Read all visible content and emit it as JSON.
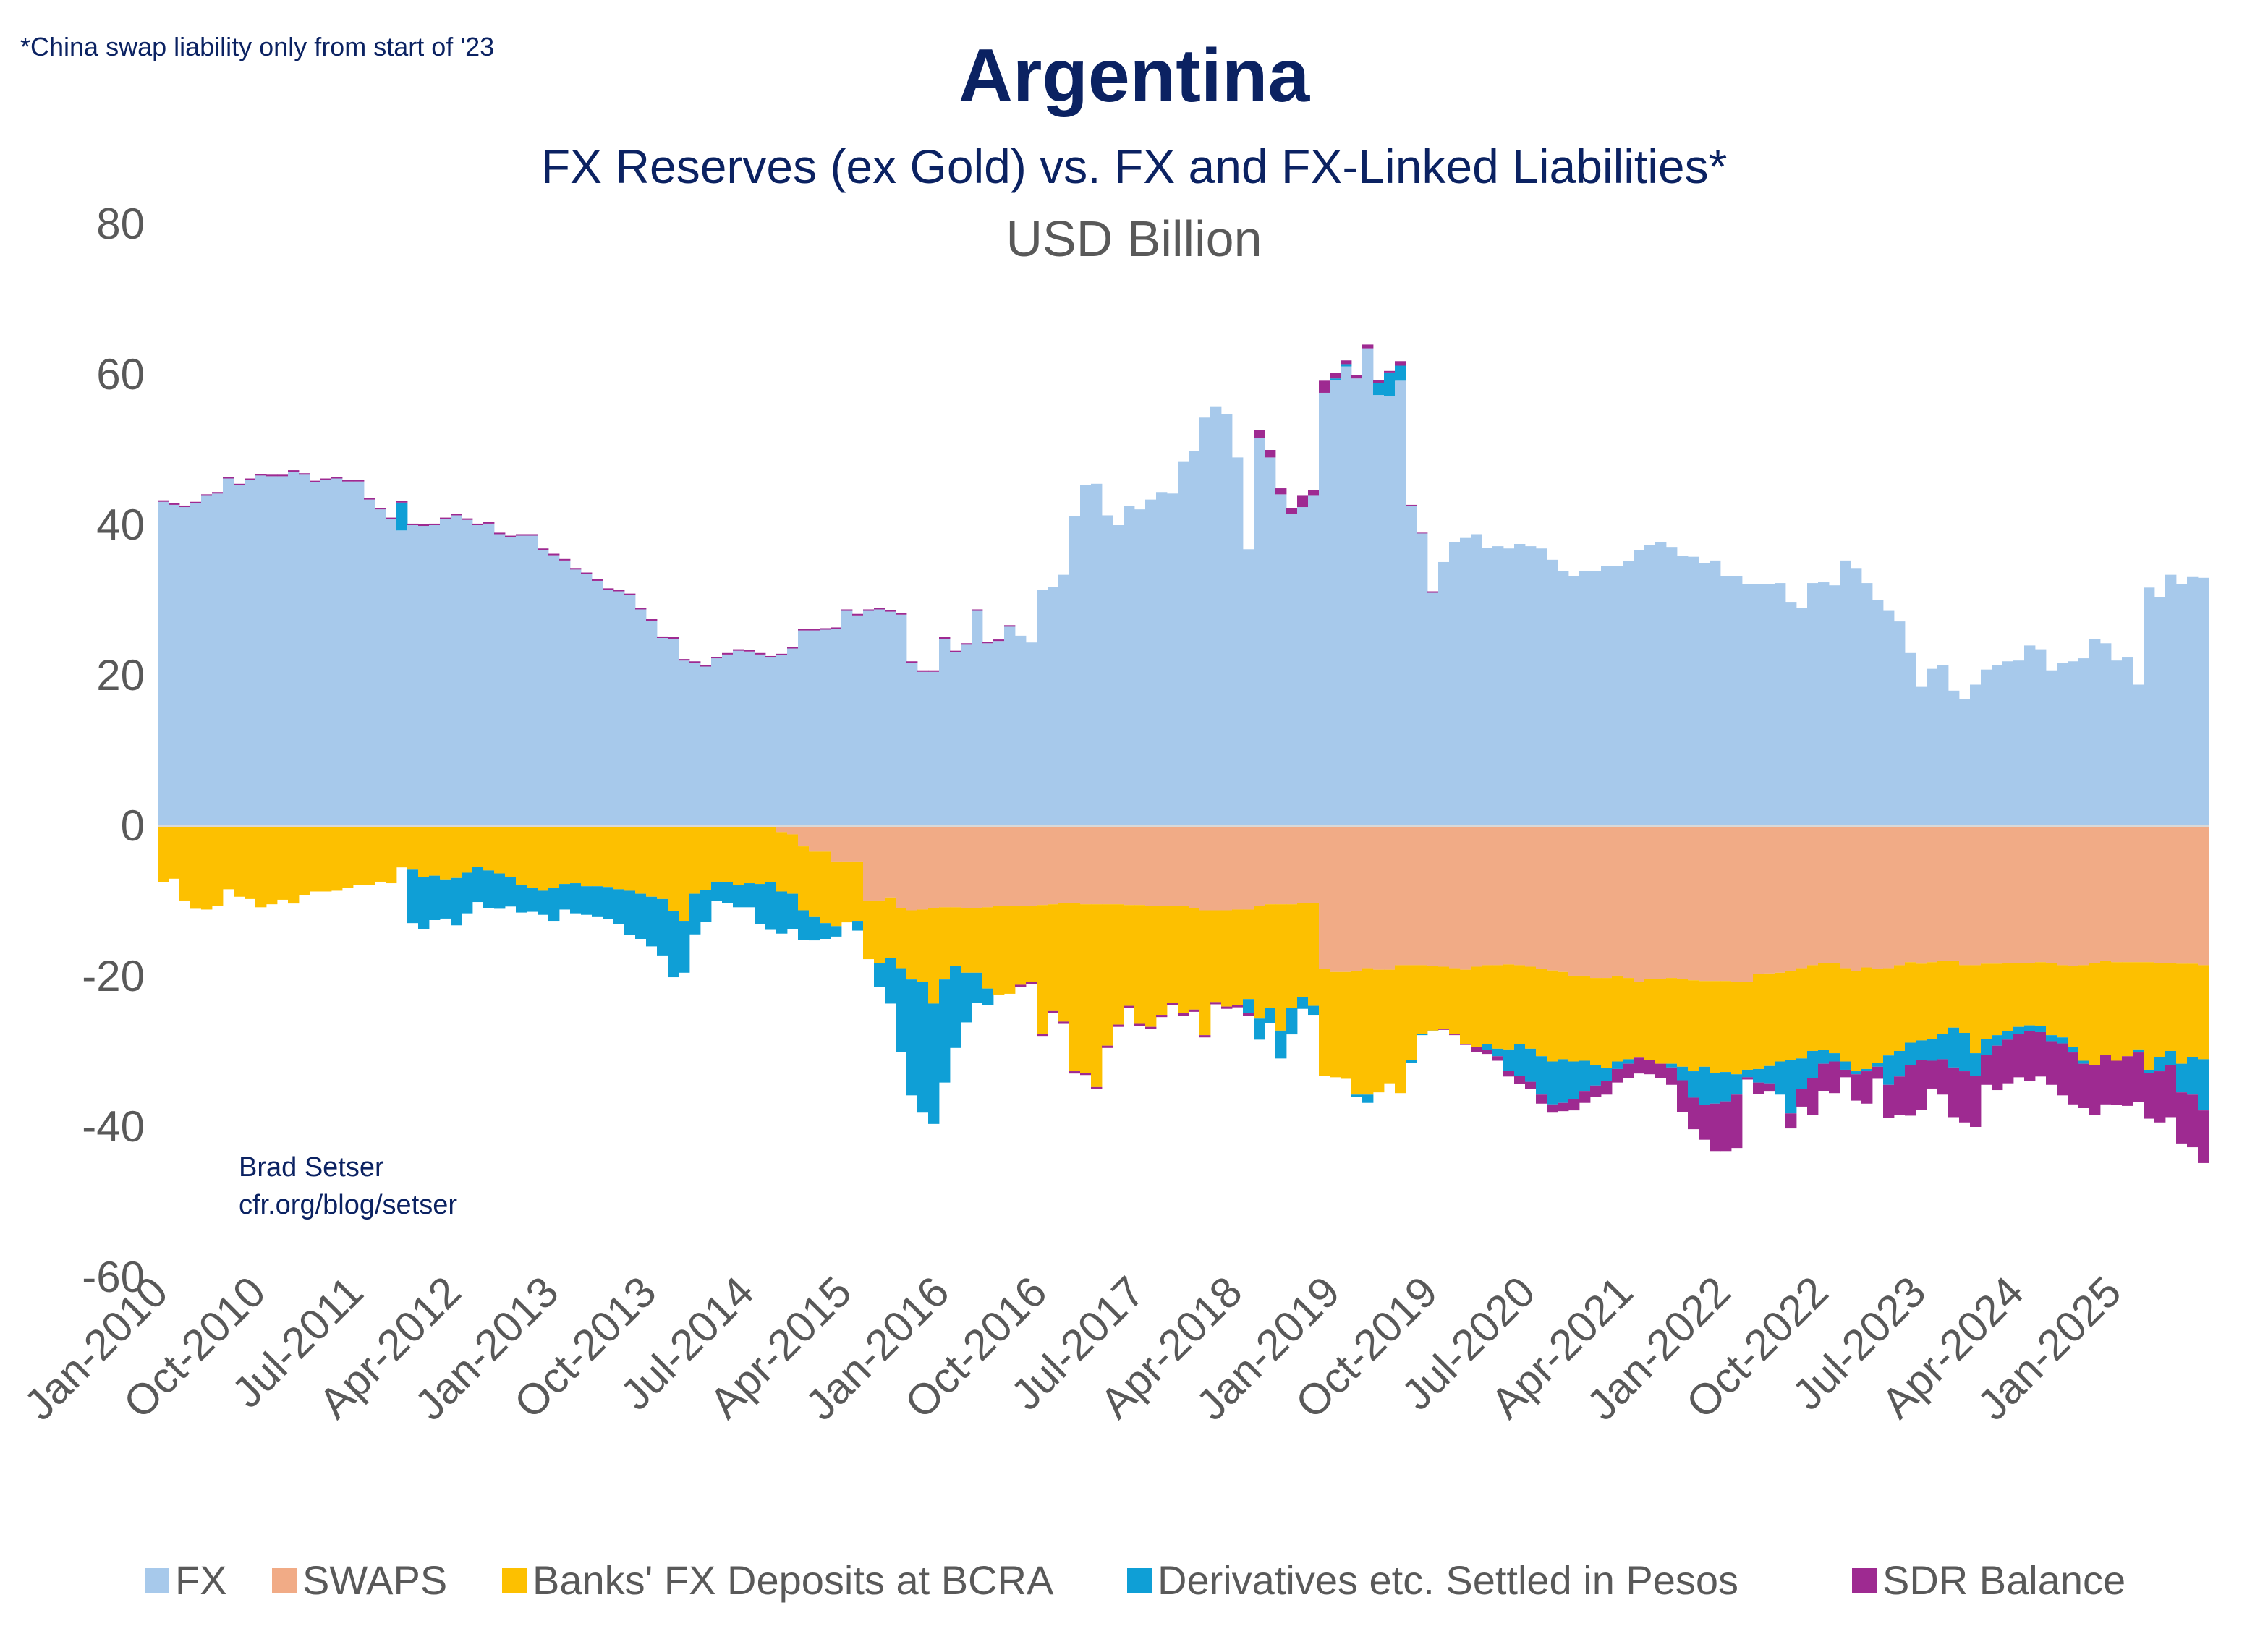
{
  "note": "*China swap liability only from start of '23",
  "chart_data": {
    "type": "bar",
    "stacked": true,
    "title": "Argentina",
    "subtitle": "FX Reserves (ex Gold) vs. FX and FX-Linked Liabilities*",
    "ylabel": "USD Billion",
    "ylim": [
      -60,
      80
    ],
    "yticks": [
      "80",
      "60",
      "40",
      "20",
      "0",
      "-20",
      "-40",
      "-60"
    ],
    "ytick_values": [
      80,
      60,
      40,
      20,
      0,
      -20,
      -40,
      -60
    ],
    "grid": false,
    "legend_position": "bottom",
    "xtick_labels": [
      "Jan-2010",
      "Oct-2010",
      "Jul-2011",
      "Apr-2012",
      "Jan-2013",
      "Oct-2013",
      "Jul-2014",
      "Apr-2015",
      "Jan-2016",
      "Oct-2016",
      "Jul-2017",
      "Apr-2018",
      "Jan-2019",
      "Oct-2019",
      "Jul-2020",
      "Apr-2021",
      "Jan-2022",
      "Oct-2022",
      "Jul-2023",
      "Apr-2024",
      "Jan-2025"
    ],
    "x": [
      "2010-01",
      "2010-02",
      "2010-03",
      "2010-04",
      "2010-05",
      "2010-06",
      "2010-07",
      "2010-08",
      "2010-09",
      "2010-10",
      "2010-11",
      "2010-12",
      "2011-01",
      "2011-02",
      "2011-03",
      "2011-04",
      "2011-05",
      "2011-06",
      "2011-07",
      "2011-08",
      "2011-09",
      "2011-10",
      "2011-11",
      "2011-12",
      "2012-01",
      "2012-02",
      "2012-03",
      "2012-04",
      "2012-05",
      "2012-06",
      "2012-07",
      "2012-08",
      "2012-09",
      "2012-10",
      "2012-11",
      "2012-12",
      "2013-01",
      "2013-02",
      "2013-03",
      "2013-04",
      "2013-05",
      "2013-06",
      "2013-07",
      "2013-08",
      "2013-09",
      "2013-10",
      "2013-11",
      "2013-12",
      "2014-01",
      "2014-02",
      "2014-03",
      "2014-04",
      "2014-05",
      "2014-06",
      "2014-07",
      "2014-08",
      "2014-09",
      "2014-10",
      "2014-11",
      "2014-12",
      "2015-01",
      "2015-02",
      "2015-03",
      "2015-04",
      "2015-05",
      "2015-06",
      "2015-07",
      "2015-08",
      "2015-09",
      "2015-10",
      "2015-11",
      "2015-12",
      "2016-01",
      "2016-02",
      "2016-03",
      "2016-04",
      "2016-05",
      "2016-06",
      "2016-07",
      "2016-08",
      "2016-09",
      "2016-10",
      "2016-11",
      "2016-12",
      "2017-01",
      "2017-02",
      "2017-03",
      "2017-04",
      "2017-05",
      "2017-06",
      "2017-07",
      "2017-08",
      "2017-09",
      "2017-10",
      "2017-11",
      "2017-12",
      "2018-01",
      "2018-02",
      "2018-03",
      "2018-04",
      "2018-05",
      "2018-06",
      "2018-07",
      "2018-08",
      "2018-09",
      "2018-10",
      "2018-11",
      "2018-12",
      "2019-01",
      "2019-02",
      "2019-03",
      "2019-04",
      "2019-05",
      "2019-06",
      "2019-07",
      "2019-08",
      "2019-09",
      "2019-10",
      "2019-11",
      "2019-12",
      "2020-01",
      "2020-02",
      "2020-03",
      "2020-04",
      "2020-05",
      "2020-06",
      "2020-07",
      "2020-08",
      "2020-09",
      "2020-10",
      "2020-11",
      "2020-12",
      "2021-01",
      "2021-02",
      "2021-03",
      "2021-04",
      "2021-05",
      "2021-06",
      "2021-07",
      "2021-08",
      "2021-09",
      "2021-10",
      "2021-11",
      "2021-12",
      "2022-01",
      "2022-02",
      "2022-03",
      "2022-04",
      "2022-05",
      "2022-06",
      "2022-07",
      "2022-08",
      "2022-09",
      "2022-10",
      "2022-11",
      "2022-12",
      "2023-01",
      "2023-02",
      "2023-03",
      "2023-04",
      "2023-05",
      "2023-06",
      "2023-07",
      "2023-08",
      "2023-09",
      "2023-10",
      "2023-11",
      "2023-12",
      "2024-01",
      "2024-02",
      "2024-03",
      "2024-04",
      "2024-05",
      "2024-06",
      "2024-07",
      "2024-08",
      "2024-09",
      "2024-10",
      "2024-11",
      "2024-12",
      "2025-01",
      "2025-02",
      "2025-03",
      "2025-04",
      "2025-05",
      "2025-06",
      "2025-07",
      "2025-08",
      "2025-09"
    ],
    "series": [
      {
        "name": "FX",
        "color": "#a7c9eb",
        "values": [
          43.1,
          42.7,
          42.4,
          42.9,
          43.9,
          44.2,
          46.2,
          45.3,
          46.0,
          46.6,
          46.5,
          46.5,
          47.1,
          46.7,
          45.7,
          46.0,
          46.2,
          45.8,
          45.8,
          43.4,
          42.1,
          40.8,
          39.3,
          40.0,
          39.9,
          40.0,
          40.8,
          41.3,
          40.7,
          40.0,
          40.2,
          38.8,
          38.4,
          38.6,
          38.6,
          36.7,
          36.0,
          35.3,
          34.1,
          33.5,
          32.6,
          31.4,
          31.2,
          30.7,
          28.8,
          27.3,
          25.0,
          24.9,
          22.0,
          21.7,
          21.2,
          22.3,
          22.8,
          23.3,
          23.2,
          22.8,
          22.4,
          22.7,
          23.6,
          26.0,
          26.0,
          26.1,
          26.2,
          28.6,
          28.0,
          28.6,
          28.8,
          28.5,
          28.1,
          21.7,
          20.5,
          20.5,
          24.9,
          23.1,
          24.1,
          28.6,
          24.3,
          24.6,
          26.5,
          25.3,
          24.4,
          31.4,
          31.8,
          33.4,
          41.2,
          45.3,
          45.5,
          41.3,
          40.0,
          42.5,
          42.1,
          43.4,
          44.4,
          44.2,
          48.4,
          49.9,
          54.3,
          55.8,
          54.8,
          49.0,
          36.8,
          51.6,
          49.0,
          44.1,
          41.5,
          42.4,
          43.9,
          57.6,
          59.3,
          61.1,
          59.5,
          63.5,
          57.3,
          57.2,
          59.2,
          42.6,
          38.9,
          31.0,
          35.1,
          37.7,
          38.3,
          38.8,
          37.0,
          37.2,
          36.9,
          37.5,
          37.2,
          36.9,
          35.4,
          33.9,
          33.2,
          33.9,
          33.9,
          34.6,
          34.6,
          35.2,
          36.7,
          37.4,
          37.7,
          37.1,
          35.9,
          35.8,
          35.0,
          35.3,
          33.2,
          33.2,
          32.2,
          32.2,
          32.2,
          32.3,
          29.8,
          29.0,
          32.3,
          32.4,
          32.0,
          35.3,
          34.3,
          32.3,
          30.0,
          28.6,
          27.2,
          23.0,
          18.5,
          20.9,
          21.4,
          18.0,
          16.9,
          18.8,
          20.8,
          21.4,
          21.9,
          22.0,
          24.0,
          23.5,
          20.7,
          21.7,
          21.9,
          22.3,
          24.9,
          24.3,
          22.0,
          22.4,
          18.8,
          31.7,
          30.4,
          33.4,
          32.2,
          33.1,
          33.0
        ]
      },
      {
        "name": "SWAPS",
        "color": "#f1ab86",
        "values": [
          0,
          0,
          0,
          0,
          0,
          0,
          0,
          0,
          0,
          0,
          0,
          0,
          0,
          0,
          0,
          0,
          0,
          0,
          0,
          0,
          0,
          0,
          0,
          0,
          0,
          0,
          0,
          0,
          0,
          0,
          0,
          0,
          0,
          0,
          0,
          0,
          0,
          0,
          0,
          0,
          0,
          0,
          0,
          0,
          0,
          0,
          0,
          0,
          0,
          0,
          0,
          0,
          0,
          0,
          0,
          0,
          0,
          -0.8,
          -1.1,
          -2.7,
          -3.4,
          -3.4,
          -4.8,
          -4.8,
          -4.8,
          -9.9,
          -9.9,
          -9.5,
          -10.9,
          -11.2,
          -11.1,
          -10.9,
          -10.8,
          -10.8,
          -10.9,
          -10.9,
          -10.8,
          -10.6,
          -10.6,
          -10.6,
          -10.6,
          -10.5,
          -10.4,
          -10.2,
          -10.2,
          -10.4,
          -10.4,
          -10.4,
          -10.4,
          -10.5,
          -10.5,
          -10.6,
          -10.6,
          -10.6,
          -10.6,
          -10.9,
          -11.2,
          -11.2,
          -11.2,
          -11.1,
          -11.1,
          -10.6,
          -10.4,
          -10.4,
          -10.4,
          -10.2,
          -10.2,
          -19.0,
          -19.4,
          -19.4,
          -19.3,
          -18.9,
          -19.1,
          -19.1,
          -18.5,
          -18.5,
          -18.5,
          -18.6,
          -18.7,
          -18.9,
          -19.1,
          -18.7,
          -18.5,
          -18.5,
          -18.4,
          -18.5,
          -18.7,
          -19.0,
          -19.2,
          -19.4,
          -19.9,
          -19.9,
          -20.2,
          -20.2,
          -19.9,
          -20.2,
          -20.7,
          -20.3,
          -20.3,
          -20.2,
          -20.3,
          -20.5,
          -20.6,
          -20.6,
          -20.6,
          -20.7,
          -20.7,
          -19.7,
          -19.6,
          -19.5,
          -19.3,
          -18.9,
          -18.5,
          -18.2,
          -18.2,
          -18.9,
          -19.3,
          -18.8,
          -19.0,
          -18.9,
          -18.5,
          -18.1,
          -18.3,
          -18.1,
          -17.9,
          -17.9,
          -18.5,
          -18.5,
          -18.3,
          -18.3,
          -18.2,
          -18.2,
          -18.2,
          -18.1,
          -18.2,
          -18.5,
          -18.6,
          -18.5,
          -18.2,
          -17.9,
          -18.1,
          -18.1,
          -18.1,
          -18.1,
          -18.2,
          -18.2,
          -18.3,
          -18.3,
          -18.5
        ]
      },
      {
        "name": "Banks' FX Deposits at BCRA",
        "color": "#fdc000",
        "values": [
          -7.5,
          -7.0,
          -9.9,
          -11.0,
          -11.1,
          -10.6,
          -8.4,
          -9.4,
          -9.7,
          -10.8,
          -10.4,
          -9.8,
          -10.3,
          -9.2,
          -8.7,
          -8.7,
          -8.6,
          -8.2,
          -7.8,
          -7.8,
          -7.4,
          -7.6,
          -5.5,
          -5.8,
          -6.8,
          -6.6,
          -7.1,
          -6.9,
          -6.2,
          -5.4,
          -5.9,
          -6.3,
          -6.8,
          -7.8,
          -8.2,
          -8.6,
          -8.2,
          -7.7,
          -7.6,
          -8.0,
          -8.0,
          -8.1,
          -8.4,
          -8.6,
          -9.0,
          -9.4,
          -9.7,
          -11.3,
          -12.6,
          -9.0,
          -8.5,
          -7.4,
          -7.5,
          -7.8,
          -7.6,
          -7.7,
          -7.5,
          -7.9,
          -7.9,
          -8.5,
          -8.7,
          -9.5,
          -8.5,
          -8.0,
          -7.8,
          -7.8,
          -8.3,
          -8.0,
          -8.0,
          -9.2,
          -9.6,
          -12.7,
          -9.6,
          -7.8,
          -8.6,
          -8.6,
          -10.8,
          -11.8,
          -11.7,
          -10.5,
          -10.1,
          -17.1,
          -14.2,
          -15.8,
          -22.4,
          -22.4,
          -24.3,
          -18.8,
          -16.0,
          -13.4,
          -15.8,
          -16.1,
          -14.5,
          -12.9,
          -14.3,
          -13.5,
          -16.6,
          -12.2,
          -12.8,
          -12.7,
          -11.9,
          -15.0,
          -13.8,
          -16.8,
          -13.8,
          -12.5,
          -13.7,
          -14.2,
          -14.0,
          -14.2,
          -16.4,
          -16.8,
          -16.3,
          -15.1,
          -17.0,
          -12.6,
          -9.1,
          -8.6,
          -8.3,
          -8.8,
          -9.9,
          -10.7,
          -10.5,
          -11.1,
          -11.3,
          -10.5,
          -10.9,
          -11.6,
          -12.1,
          -11.6,
          -11.4,
          -11.3,
          -11.6,
          -12.0,
          -11.4,
          -10.8,
          -10.1,
          -10.8,
          -11.3,
          -11.4,
          -11.7,
          -12.1,
          -11.4,
          -12.2,
          -12.1,
          -12.3,
          -11.7,
          -12.6,
          -12.3,
          -11.8,
          -11.8,
          -12.0,
          -11.4,
          -11.6,
          -12.0,
          -12.4,
          -13.3,
          -13.5,
          -12.5,
          -11.6,
          -11.4,
          -10.7,
          -10.2,
          -10.2,
          -9.7,
          -8.9,
          -9.0,
          -11.7,
          -10.0,
          -9.5,
          -9.1,
          -8.5,
          -8.3,
          -8.5,
          -9.6,
          -9.6,
          -10.8,
          -12.7,
          -13.6,
          -12.5,
          -13.1,
          -12.5,
          -11.6,
          -14.3,
          -12.5,
          -11.7,
          -13.3,
          -12.4,
          -12.5
        ]
      },
      {
        "name": "Derivatives etc. Settled in Pesos",
        "color": "#0f9fd6",
        "values": [
          0,
          0,
          0,
          0,
          0,
          0,
          0,
          0,
          0,
          0,
          0,
          0,
          0,
          0,
          0,
          0,
          0,
          0,
          0,
          0,
          0,
          0,
          3.7,
          -7.1,
          -6.9,
          -5.9,
          -5.2,
          -6.3,
          -5.4,
          -4.7,
          -5.0,
          -4.7,
          -3.9,
          -3.7,
          -3.2,
          -3.2,
          -4.4,
          -3.4,
          -4.0,
          -3.8,
          -4.1,
          -4.3,
          -4.6,
          -5.9,
          -6.0,
          -6.6,
          -7.5,
          -8.8,
          -6.9,
          -5.4,
          -4.2,
          -2.6,
          -2.7,
          -3.0,
          -3.2,
          -5.3,
          -6.3,
          -5.6,
          -4.7,
          -3.9,
          -3.1,
          -2.1,
          -1.4,
          0,
          -1.3,
          0,
          -3.2,
          -6.1,
          -11.1,
          -15.4,
          -17.4,
          -16.0,
          -13.7,
          -10.9,
          -6.6,
          -4.0,
          -2.2,
          0,
          0,
          0,
          0,
          0,
          0,
          0,
          0,
          0,
          0,
          0,
          0,
          0,
          0,
          0,
          0,
          0,
          0,
          0,
          0,
          0,
          0,
          0,
          -1.9,
          -2.8,
          -2.0,
          -3.7,
          -3.5,
          -1.6,
          -1.2,
          0,
          0.2,
          0.3,
          -0.3,
          -1.1,
          1.6,
          3.1,
          2.0,
          -0.4,
          -0.2,
          -0.1,
          0,
          0,
          0,
          0,
          -0.8,
          -1.0,
          -2.8,
          -4.2,
          -4.4,
          -5.1,
          -5.7,
          -5.8,
          -5.0,
          -4.1,
          -2.7,
          -1.7,
          -1.0,
          -0.6,
          0,
          0,
          0,
          -0.5,
          -1.8,
          -3.5,
          -5.1,
          -4.1,
          -3.9,
          -2.7,
          -1.0,
          -1.8,
          -2.3,
          -4.4,
          -7.1,
          -4.1,
          -3.6,
          -1.8,
          -1.1,
          -1.1,
          -0.4,
          -0.3,
          -0.5,
          -3.9,
          -3.4,
          -3.0,
          -2.6,
          -2.9,
          -3.4,
          -5.3,
          -5.1,
          -3.0,
          -2.1,
          -1.4,
          -1.1,
          -0.9,
          -0.8,
          -0.8,
          -0.8,
          -0.8,
          -0.7,
          -0.4,
          0,
          0,
          0,
          0,
          -0.4,
          -0.4,
          -1.9,
          -1.9,
          -3.8,
          -5.0,
          -6.8
        ]
      },
      {
        "name": "SDR Balance",
        "color": "#9e2a91",
        "values": [
          0.2,
          0.2,
          0.2,
          0.2,
          0.2,
          0.2,
          0.2,
          0.2,
          0.2,
          0.2,
          0.2,
          0.2,
          0.2,
          0.2,
          0.2,
          0.2,
          0.2,
          0.2,
          0.2,
          0.2,
          0.2,
          0.2,
          0.2,
          0.2,
          0.2,
          0.2,
          0.2,
          0.2,
          0.2,
          0.2,
          0.2,
          0.2,
          0.2,
          0.2,
          0.2,
          0.2,
          0.2,
          0.2,
          0.2,
          0.2,
          0.2,
          0.2,
          0.2,
          0.2,
          0.2,
          0.2,
          0.2,
          0.2,
          0.2,
          0.2,
          0.2,
          0.2,
          0.2,
          0.2,
          0.2,
          0.2,
          0.2,
          0.2,
          0.2,
          0.2,
          0.2,
          0.2,
          0.2,
          0.2,
          0.2,
          0.2,
          0.2,
          0.2,
          0.2,
          0.2,
          0.2,
          0.2,
          0.2,
          0.2,
          0.2,
          0.2,
          0.2,
          0.2,
          0.2,
          -0.3,
          -0.3,
          -0.3,
          -0.3,
          -0.3,
          -0.3,
          -0.3,
          -0.3,
          -0.3,
          -0.3,
          -0.3,
          -0.3,
          -0.3,
          -0.3,
          -0.3,
          -0.3,
          -0.3,
          -0.3,
          -0.3,
          -0.3,
          -0.3,
          -0.3,
          1.0,
          1.0,
          0.8,
          0.8,
          1.5,
          0.8,
          1.6,
          0.7,
          0.5,
          0.5,
          0.5,
          0.4,
          0.2,
          0.6,
          0.1,
          0.1,
          0.2,
          -0.1,
          -0.1,
          -0.1,
          -0.6,
          -0.5,
          -0.6,
          -0.8,
          -1.1,
          -1.0,
          -1.2,
          -1.1,
          -1.1,
          -1.5,
          -1.5,
          -1.5,
          -1.8,
          -1.8,
          -1.9,
          -2.1,
          -1.9,
          -1.9,
          -2.3,
          -4.2,
          -4.2,
          -4.6,
          -6.3,
          -6.6,
          -7.1,
          -0.3,
          -1.5,
          -1.1,
          0,
          -2.0,
          -2.3,
          -4.9,
          -3.6,
          -4.2,
          -1.0,
          -3.5,
          -4.3,
          -1.6,
          -4.4,
          -5.1,
          -6.7,
          -6.6,
          -3.7,
          -4.7,
          -6.6,
          -6.8,
          -6.8,
          -4.0,
          -5.9,
          -5.8,
          -5.8,
          -6.6,
          -5.9,
          -5.8,
          -6.9,
          -6.9,
          -5.9,
          -6.6,
          -6.6,
          -5.9,
          -6.6,
          -6.6,
          -6.1,
          -6.8,
          -6.9,
          -6.8,
          -7.0,
          -7.0
        ]
      }
    ]
  },
  "credit": {
    "author": "Brad Setser",
    "site": "cfr.org/blog/setser"
  }
}
